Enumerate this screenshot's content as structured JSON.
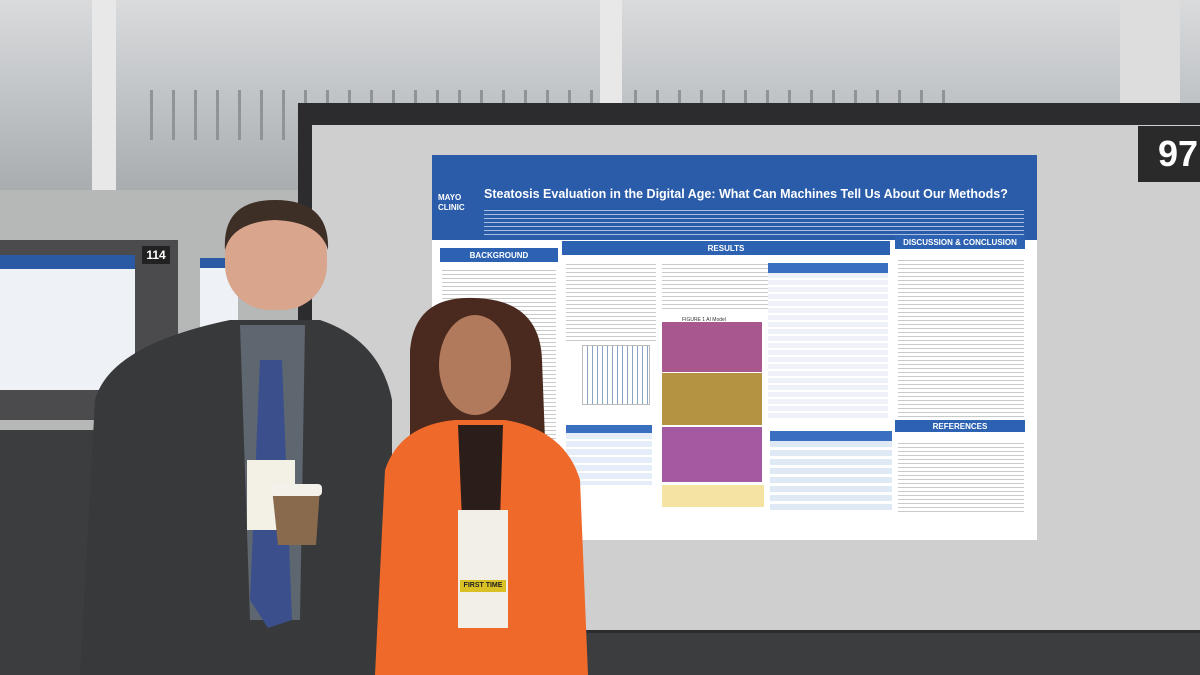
{
  "signs": {
    "board_number": "97",
    "left_board_number": "114"
  },
  "poster": {
    "logo": "MAYO CLINIC",
    "title": "Steatosis Evaluation in the Digital Age: What Can Machines Tell Us About Our Methods?",
    "sections": [
      "BACKGROUND",
      "RESULTS",
      "DISCUSSION & CONCLUSION",
      "REFERENCES"
    ],
    "figure_caption": "FIGURE 1 AI Model"
  },
  "badge": {
    "ribbon": "FIRST TIME"
  }
}
